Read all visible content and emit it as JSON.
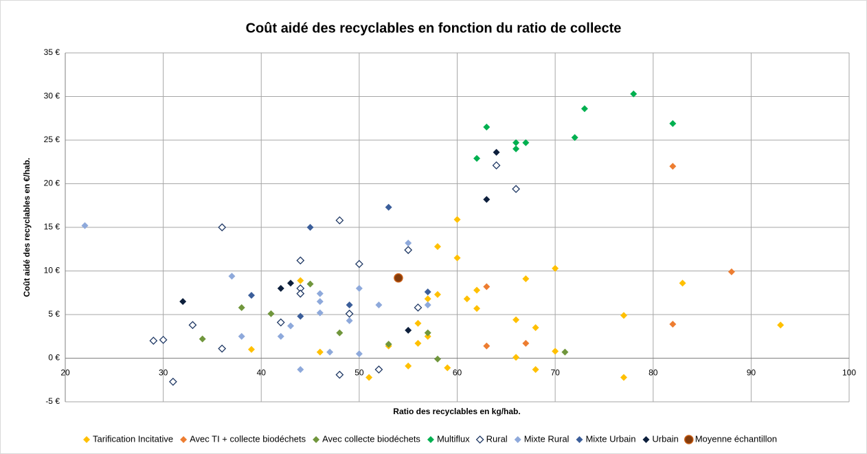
{
  "chart_data": {
    "type": "scatter",
    "title": "Coût aidé des recyclables en fonction du ratio de collecte",
    "x_label": "Ratio des recyclables en kg/hab.",
    "y_label": "Coût aidé des recyclables en €/hab.",
    "xlim": [
      20,
      100
    ],
    "xticks": [
      20,
      30,
      40,
      50,
      60,
      70,
      80,
      90,
      100
    ],
    "ylim": [
      -5,
      35
    ],
    "yticks": [
      {
        "value": -5,
        "label": "-5 €"
      },
      {
        "value": 0,
        "label": "0 €"
      },
      {
        "value": 5,
        "label": "5 €"
      },
      {
        "value": 10,
        "label": "10 €"
      },
      {
        "value": 15,
        "label": "15 €"
      },
      {
        "value": 20,
        "label": "20 €"
      },
      {
        "value": 25,
        "label": "25 €"
      },
      {
        "value": 30,
        "label": "30 €"
      },
      {
        "value": 35,
        "label": "35 €"
      }
    ],
    "grid": true,
    "legend": "bottom",
    "series": [
      {
        "name": "Tarification Incitative",
        "color": "#FFC000",
        "marker": "diamond",
        "x": [
          44,
          39,
          46,
          51,
          55,
          56,
          56,
          57,
          57,
          58,
          58,
          59,
          60,
          60,
          61,
          62,
          62,
          66,
          66,
          67,
          68,
          68,
          70,
          70,
          77,
          77,
          83,
          93,
          53
        ],
        "values": [
          8.9,
          1.0,
          0.7,
          -2.2,
          -0.9,
          4.0,
          1.7,
          2.5,
          6.8,
          7.3,
          12.8,
          -1.1,
          15.9,
          11.5,
          6.8,
          7.8,
          5.7,
          4.4,
          0.1,
          9.1,
          3.5,
          -1.3,
          10.3,
          0.8,
          4.9,
          -2.2,
          8.6,
          3.8,
          1.4
        ]
      },
      {
        "name": "Avec TI + collecte biodéchets",
        "color": "#ED7D31",
        "marker": "diamond",
        "x": [
          63,
          63,
          67,
          82,
          82,
          88
        ],
        "values": [
          8.2,
          1.4,
          1.7,
          22.0,
          3.9,
          9.9
        ]
      },
      {
        "name": "Avec collecte biodéchets",
        "color": "#70963C",
        "marker": "diamond",
        "x": [
          34,
          38,
          41,
          45,
          48,
          53,
          57,
          58,
          71
        ],
        "values": [
          2.2,
          5.8,
          5.1,
          8.5,
          2.9,
          1.6,
          2.9,
          -0.1,
          0.7
        ]
      },
      {
        "name": "Multiflux",
        "color": "#00B050",
        "marker": "diamond",
        "x": [
          63,
          62,
          66,
          66,
          67,
          73,
          72,
          78,
          82
        ],
        "values": [
          26.5,
          22.9,
          24.7,
          24.0,
          24.7,
          28.6,
          25.3,
          30.3,
          26.9
        ]
      },
      {
        "name": "Rural",
        "color": "#1F3864",
        "marker": "diamond-open",
        "x": [
          29,
          30,
          31,
          33,
          36,
          36,
          42,
          44,
          44,
          44,
          48,
          48,
          49,
          50,
          52,
          55,
          56,
          64,
          66
        ],
        "values": [
          2.0,
          2.1,
          -2.7,
          3.8,
          1.1,
          15.0,
          4.1,
          11.2,
          8.0,
          7.4,
          15.8,
          -1.9,
          5.1,
          10.8,
          -1.3,
          12.4,
          5.8,
          22.1,
          19.4
        ]
      },
      {
        "name": "Mixte Rural",
        "color": "#8EA9DB",
        "marker": "diamond",
        "x": [
          22,
          37,
          38,
          43,
          42,
          44,
          46,
          46,
          46,
          47,
          49,
          50,
          50,
          52,
          55,
          57
        ],
        "values": [
          15.2,
          9.4,
          2.5,
          3.7,
          2.5,
          -1.3,
          7.4,
          6.5,
          5.2,
          0.7,
          4.3,
          8.0,
          0.5,
          6.1,
          13.2,
          6.1
        ]
      },
      {
        "name": "Mixte Urbain",
        "color": "#3B5E9A",
        "marker": "diamond",
        "x": [
          39,
          44,
          45,
          49,
          53,
          57
        ],
        "values": [
          7.2,
          4.8,
          15.0,
          6.1,
          17.3,
          7.6
        ]
      },
      {
        "name": "Urbain",
        "color": "#0D1F3C",
        "marker": "diamond",
        "x": [
          32,
          42,
          43,
          55,
          63,
          64
        ],
        "values": [
          6.5,
          8.0,
          8.6,
          3.2,
          18.2,
          23.6
        ]
      },
      {
        "name": "Moyenne échantillon",
        "color": "#843C0C",
        "marker": "circle",
        "x": [
          54
        ],
        "values": [
          9.2
        ]
      }
    ]
  }
}
